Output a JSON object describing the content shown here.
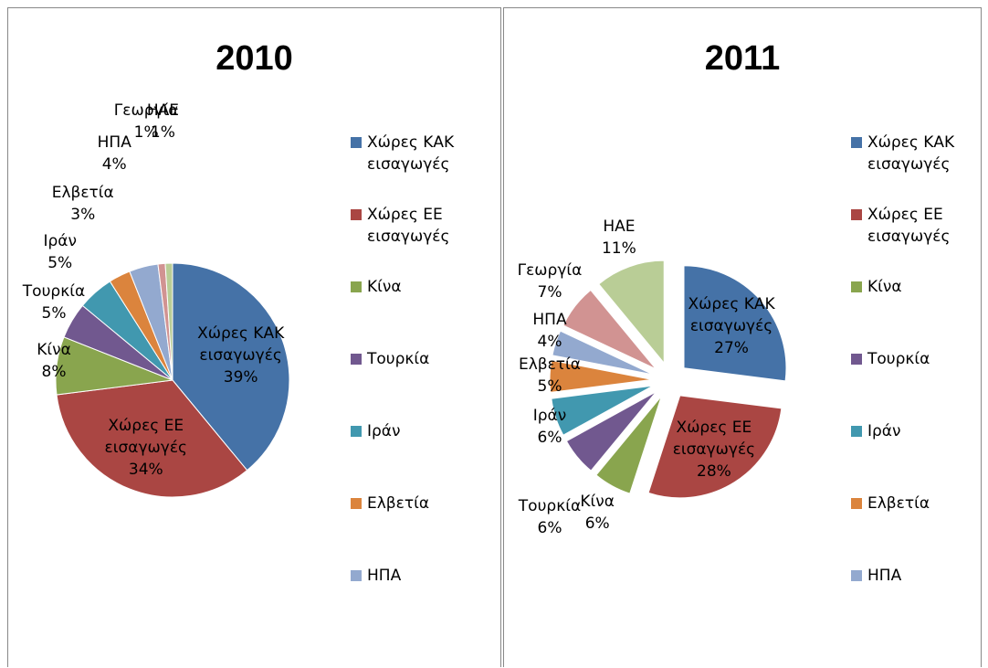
{
  "chart_data": [
    {
      "type": "pie",
      "title": "2010",
      "categories": [
        "Χώρες ΚΑΚ εισαγωγές",
        "Χώρες ΕΕ εισαγωγές",
        "Κίνα",
        "Τουρκία",
        "Ιράν",
        "Ελβετία",
        "ΗΠΑ",
        "Γεωργία",
        "ΗΑΕ"
      ],
      "values": [
        39,
        34,
        8,
        5,
        5,
        3,
        4,
        1,
        1
      ],
      "value_labels": [
        "39%",
        "34%",
        "8%",
        "5%",
        "5%",
        "3%",
        "4%",
        "1%",
        "1%"
      ],
      "colors": [
        "#4572A7",
        "#AA4643",
        "#89A54E",
        "#71588F",
        "#4198AF",
        "#DB843D",
        "#93A9CF",
        "#D19392",
        "#B9CD96"
      ],
      "legend": "right",
      "exploded": false
    },
    {
      "type": "pie",
      "title": "2011",
      "categories": [
        "Χώρες ΚΑΚ εισαγωγές",
        "Χώρες ΕΕ εισαγωγές",
        "Κίνα",
        "Τουρκία",
        "Ιράν",
        "Ελβετία",
        "ΗΠΑ",
        "Γεωργία",
        "ΗΑΕ"
      ],
      "values": [
        27,
        28,
        6,
        6,
        6,
        5,
        4,
        7,
        11
      ],
      "value_labels": [
        "27%",
        "28%",
        "6%",
        "6%",
        "6%",
        "5%",
        "4%",
        "7%",
        "11%"
      ],
      "colors": [
        "#4572A7",
        "#AA4643",
        "#89A54E",
        "#71588F",
        "#4198AF",
        "#DB843D",
        "#93A9CF",
        "#D19392",
        "#B9CD96"
      ],
      "legend": "right",
      "exploded": true
    }
  ]
}
